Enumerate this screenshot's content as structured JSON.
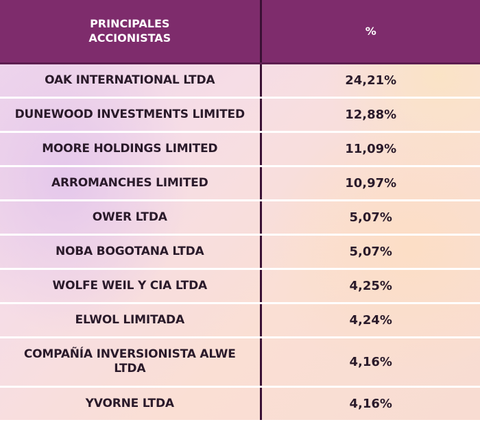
{
  "table": {
    "header": {
      "name_line1": "PRINCIPALES",
      "name_line2": "ACCIONISTAS",
      "pct": "%"
    },
    "rows": [
      {
        "name": "OAK INTERNATIONAL LTDA",
        "pct": "24,21%"
      },
      {
        "name": "DUNEWOOD INVESTMENTS LIMITED",
        "pct": "12,88%"
      },
      {
        "name": "MOORE HOLDINGS LIMITED",
        "pct": "11,09%"
      },
      {
        "name": "ARROMANCHES LIMITED",
        "pct": "10,97%"
      },
      {
        "name": "OWER LTDA",
        "pct": "5,07%"
      },
      {
        "name": "NOBA BOGOTANA LTDA",
        "pct": "5,07%"
      },
      {
        "name": "WOLFE WEIL Y CIA LTDA",
        "pct": "4,25%"
      },
      {
        "name": "ELWOL LIMITADA",
        "pct": "4,24%"
      },
      {
        "name_line1": "COMPAÑÍA INVERSIONISTA ALWE",
        "name_line2": "LTDA",
        "pct": "4,16%"
      },
      {
        "name": "YVORNE LTDA",
        "pct": "4,16%"
      }
    ]
  },
  "chart_data": {
    "type": "table",
    "columns": [
      "PRINCIPALES ACCIONISTAS",
      "%"
    ],
    "categories": [
      "OAK INTERNATIONAL LTDA",
      "DUNEWOOD INVESTMENTS LIMITED",
      "MOORE HOLDINGS LIMITED",
      "ARROMANCHES LIMITED",
      "OWER LTDA",
      "NOBA BOGOTANA LTDA",
      "WOLFE WEIL Y CIA LTDA",
      "ELWOL LIMITADA",
      "COMPAÑÍA INVERSIONISTA ALWE LTDA",
      "YVORNE LTDA"
    ],
    "values": [
      24.21,
      12.88,
      11.09,
      10.97,
      5.07,
      5.07,
      4.25,
      4.24,
      4.16,
      4.16
    ],
    "colors": {
      "header_background": "#7e2c6c",
      "header_text": "#ffffff",
      "body_text": "#2a1a2a",
      "column_divider": "#3a1034",
      "row_divider": "#ffffff"
    }
  }
}
